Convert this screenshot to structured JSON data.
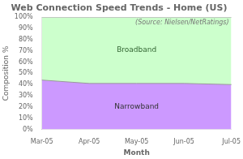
{
  "chart_data": {
    "type": "area",
    "title": "Web Connection Speed Trends - Home (US)",
    "xlabel": "Month",
    "ylabel": "Composition %",
    "annotation": "(Source: Nielsen/NetRatings)",
    "categories": [
      "Mar-05",
      "Apr-05",
      "May-05",
      "Jun-05",
      "Jul-05"
    ],
    "series": [
      {
        "name": "Narrowband",
        "color": "#CC99FF",
        "values": [
          0.44,
          0.41,
          0.41,
          0.41,
          0.4
        ]
      },
      {
        "name": "Broadband",
        "color": "#CCFFCC",
        "values": [
          0.56,
          0.59,
          0.59,
          0.59,
          0.6
        ]
      }
    ],
    "stacked": true,
    "ylim": [
      0,
      1.0
    ],
    "yticks": [
      {
        "value": 0,
        "label": "0%"
      },
      {
        "value": 0.1,
        "label": "10%"
      },
      {
        "value": 0.2,
        "label": "20%"
      },
      {
        "value": 0.3,
        "label": "30%"
      },
      {
        "value": 0.4,
        "label": "40%"
      },
      {
        "value": 0.5,
        "label": "50%"
      },
      {
        "value": 0.6,
        "label": "60%"
      },
      {
        "value": 0.7,
        "label": "70%"
      },
      {
        "value": 0.8,
        "label": "80%"
      },
      {
        "value": 0.9,
        "label": "90%"
      },
      {
        "value": 1.0,
        "label": "100%"
      }
    ],
    "grid": false
  }
}
